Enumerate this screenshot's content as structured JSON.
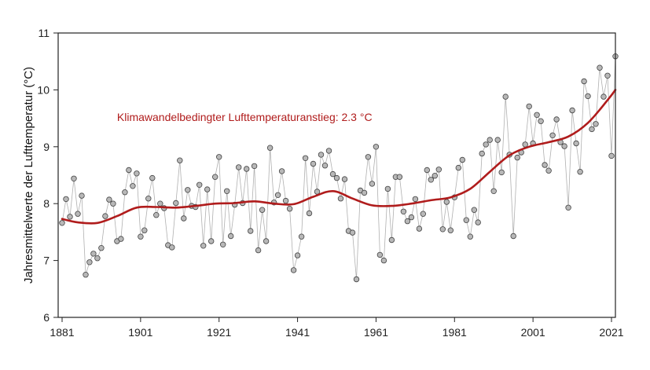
{
  "chart_data": {
    "type": "line",
    "ylabel": "Jahresmittelwerte der Lufttemperatur (°C)",
    "xlabel": "",
    "annotation": "Klimawandelbedingter Lufttemperaturanstieg: 2.3 °C",
    "xlim": [
      1880,
      2022
    ],
    "ylim": [
      6,
      11
    ],
    "x_ticks": [
      "1881",
      "1901",
      "1921",
      "1941",
      "1961",
      "1981",
      "2001",
      "2021"
    ],
    "y_ticks": [
      "6",
      "7",
      "8",
      "9",
      "10",
      "11"
    ],
    "grid": false,
    "colors": {
      "trend": "#b01c1c",
      "annotation": "#b01c1c",
      "points_fill": "#b8b8b8",
      "points_stroke": "#444444",
      "connector": "#b0b0b0"
    },
    "series": [
      {
        "x_start": 1881,
        "values": [
          7.66,
          8.08,
          7.77,
          8.44,
          7.82,
          8.14,
          6.75,
          6.97,
          7.12,
          7.04,
          7.22,
          7.78,
          8.07,
          8.0,
          7.34,
          7.38,
          8.2,
          8.59,
          8.31,
          8.53,
          7.42,
          7.53,
          8.09,
          8.45,
          7.8,
          8.0,
          7.92,
          7.27,
          7.23,
          8.01,
          8.76,
          7.74,
          8.24,
          7.96,
          7.94,
          8.33,
          7.26,
          8.25,
          7.34,
          8.47,
          8.82,
          7.28,
          8.22,
          7.43,
          7.98,
          8.64,
          8.01,
          8.61,
          7.52,
          8.66,
          7.18,
          7.89,
          7.34,
          8.98,
          8.02,
          8.15,
          8.57,
          8.05,
          7.91,
          6.83,
          7.09,
          7.42,
          8.8,
          7.83,
          8.7,
          8.21,
          8.86,
          8.67,
          8.93,
          8.52,
          8.45,
          8.09,
          8.43,
          7.52,
          7.49,
          6.67,
          8.23,
          8.19,
          8.82,
          8.35,
          9.0,
          7.1,
          7.0,
          8.26,
          7.36,
          8.47,
          8.47,
          7.86,
          7.69,
          7.76,
          8.08,
          7.56,
          7.82,
          8.59,
          8.42,
          8.49,
          8.6,
          7.55,
          8.03,
          7.53,
          8.11,
          8.63,
          8.77,
          7.71,
          7.42,
          7.89,
          7.67,
          8.88,
          9.04,
          9.12,
          8.22,
          9.12,
          8.55,
          9.88,
          8.86,
          7.43,
          8.81,
          8.9,
          9.04,
          9.71,
          9.06,
          9.56,
          9.45,
          8.68,
          8.58,
          9.2,
          9.48,
          9.08,
          9.01,
          7.93,
          9.64,
          9.06,
          8.56,
          10.15,
          9.89,
          9.31,
          9.4,
          10.39,
          9.88,
          10.25,
          8.84,
          10.59
        ]
      },
      {
        "name": "trend",
        "x": [
          1881,
          1885,
          1890,
          1895,
          1900,
          1905,
          1910,
          1915,
          1920,
          1925,
          1930,
          1935,
          1940,
          1945,
          1950,
          1955,
          1960,
          1965,
          1970,
          1975,
          1980,
          1985,
          1990,
          1995,
          2000,
          2005,
          2010,
          2015,
          2020,
          2022
        ],
        "values": [
          7.73,
          7.67,
          7.66,
          7.78,
          7.93,
          7.94,
          7.93,
          7.96,
          8.0,
          8.01,
          8.04,
          8.0,
          7.99,
          8.12,
          8.22,
          8.09,
          7.97,
          7.96,
          8.0,
          8.06,
          8.11,
          8.26,
          8.56,
          8.85,
          9.0,
          9.08,
          9.18,
          9.42,
          9.82,
          10.0
        ]
      }
    ]
  }
}
